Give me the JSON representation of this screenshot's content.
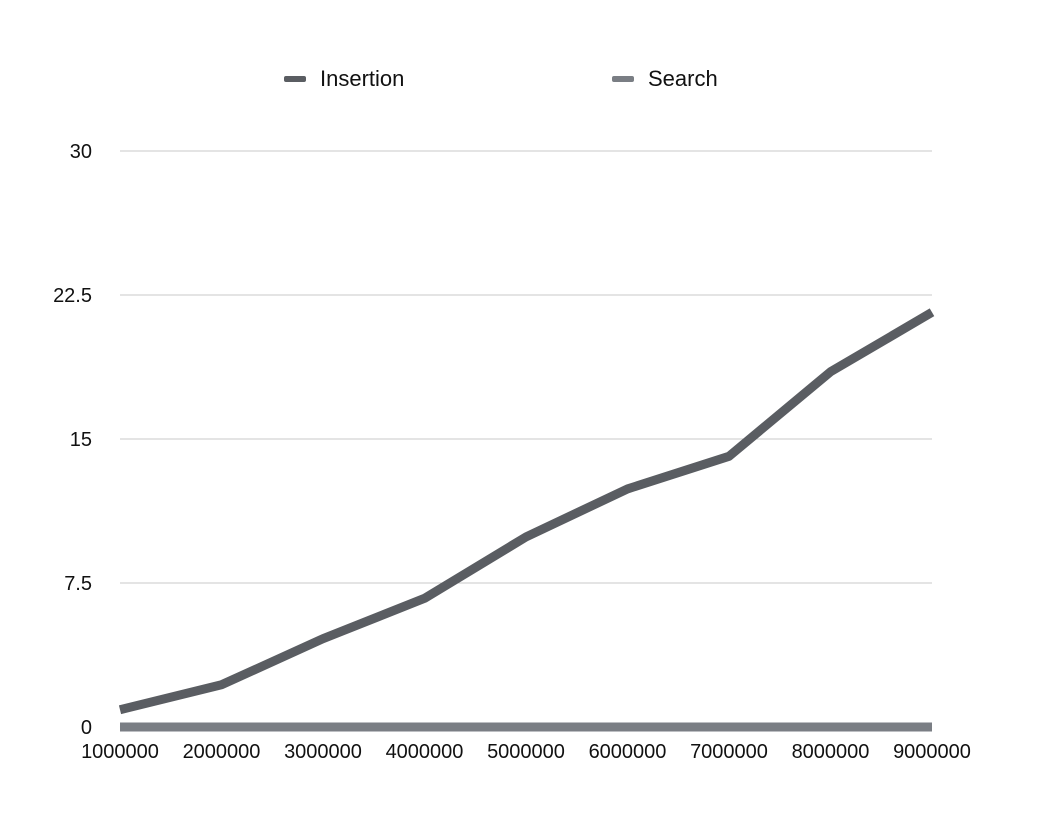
{
  "chart_data": {
    "type": "line",
    "title": "",
    "xlabel": "",
    "ylabel": "",
    "categories": [
      "1000000",
      "2000000",
      "3000000",
      "4000000",
      "5000000",
      "6000000",
      "7000000",
      "8000000",
      "9000000"
    ],
    "y_ticks": [
      "0",
      "7.5",
      "15",
      "22.5",
      "30"
    ],
    "ylim": [
      0,
      30
    ],
    "grid": true,
    "legend_position": "top",
    "series": [
      {
        "name": "Insertion",
        "color": "#5a5d62",
        "values": [
          0.9,
          2.2,
          4.6,
          6.7,
          9.9,
          12.4,
          14.1,
          18.5,
          21.6
        ]
      },
      {
        "name": "Search",
        "color": "#7a7e84",
        "values": [
          0.0,
          0.0,
          0.0,
          0.0,
          0.0,
          0.0,
          0.0,
          0.0,
          0.0
        ]
      }
    ]
  }
}
